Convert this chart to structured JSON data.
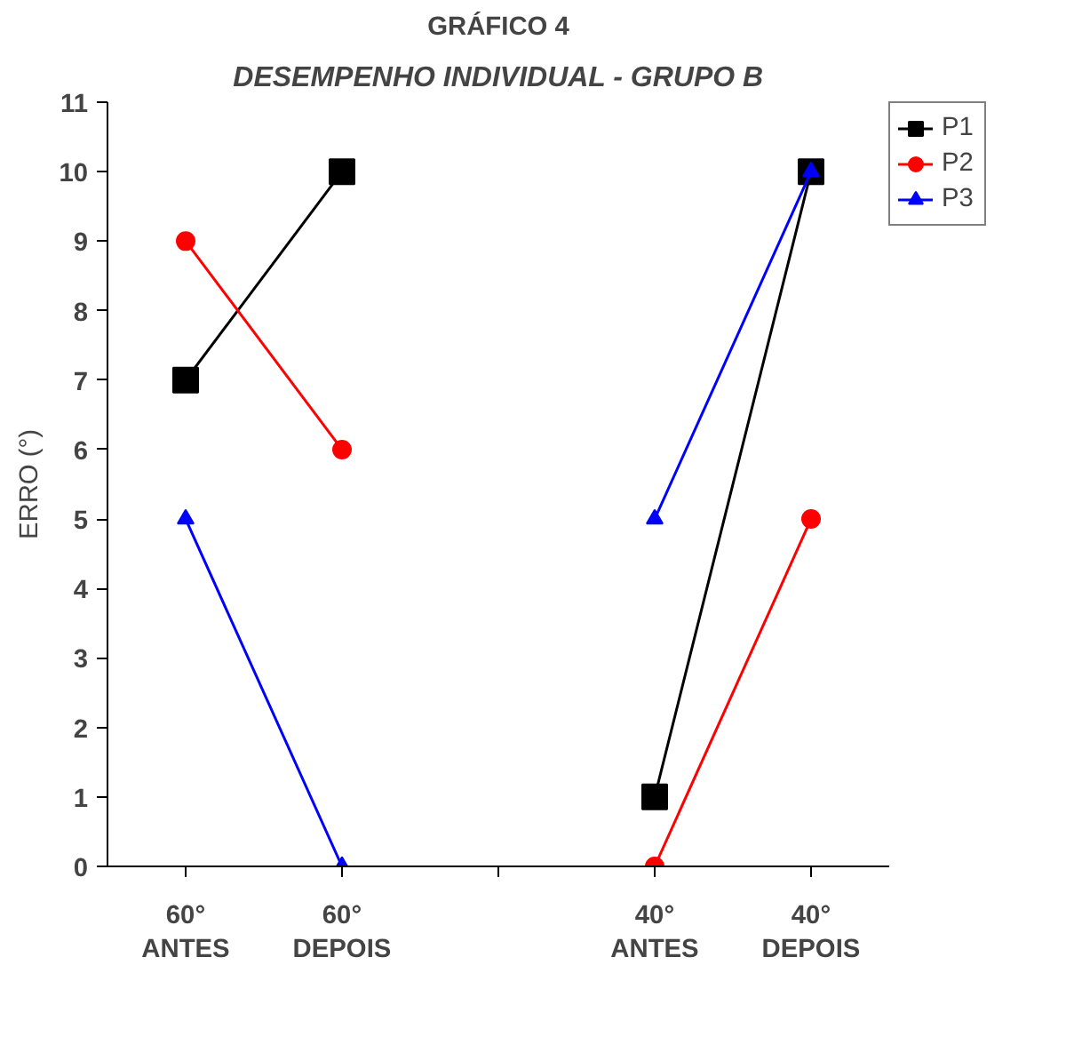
{
  "chart_data": {
    "type": "line",
    "title": "GRÁFICO 4",
    "subtitle": "DESEMPENHO INDIVIDUAL - GRUPO B",
    "ylabel": "ERRO (°)",
    "categories": [
      "60°\nANTES",
      "60°\nDEPOIS",
      null,
      "40°\nANTES",
      "40°\nDEPOIS"
    ],
    "series": [
      {
        "name": "P1",
        "color": "#000000",
        "marker": "square",
        "values": [
          7,
          10,
          null,
          1,
          10
        ]
      },
      {
        "name": "P2",
        "color": "#ff0000",
        "marker": "circle",
        "values": [
          9,
          6,
          null,
          0,
          5
        ]
      },
      {
        "name": "P3",
        "color": "#0000ff",
        "marker": "triangle",
        "values": [
          5,
          0,
          null,
          5,
          10
        ]
      }
    ],
    "ylim": [
      0,
      11
    ],
    "yticks": [
      0,
      1,
      2,
      3,
      4,
      5,
      6,
      7,
      8,
      9,
      10,
      11
    ],
    "grid": false,
    "legend": "top right",
    "line_style": "solid"
  }
}
